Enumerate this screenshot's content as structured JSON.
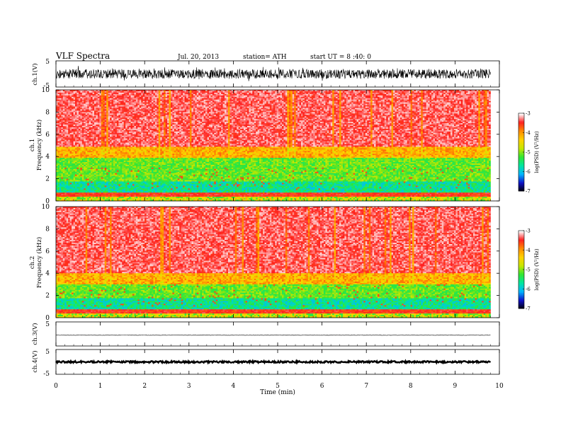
{
  "header": {
    "title": "VLF  Spectra",
    "date": "Jul.  20, 2013",
    "station": "station= ATH",
    "start": "start  UT  =   8 :40: 0"
  },
  "chart_data": {
    "type": "heatmap",
    "x_axis": {
      "label": "Time  (min)",
      "range": [
        0,
        10
      ],
      "ticks": [
        "0",
        "1",
        "2",
        "3",
        "4",
        "5",
        "6",
        "7",
        "8",
        "9",
        "10"
      ],
      "data_end": 9.8
    },
    "panels": [
      {
        "kind": "waveform",
        "ylabel": "ch.1(V)",
        "ylim": [
          -5,
          5
        ],
        "yticks": [
          "5",
          "-5"
        ],
        "amplitude": 1.8,
        "color": "#000000"
      },
      {
        "kind": "spectrogram",
        "ylabel_line1": "ch.1",
        "ylabel_line2": "Frequency  (kHz)",
        "ylim": [
          0,
          10
        ],
        "yticks": [
          "0",
          "2",
          "4",
          "6",
          "8",
          "10"
        ],
        "colorbar": {
          "label": "log(PSD) (V²/Hz)",
          "range": [
            -7,
            -3
          ],
          "ticks": [
            "-3",
            "-4",
            "-5",
            "-6",
            "-7"
          ]
        },
        "noise_floor_khz": 4.3
      },
      {
        "kind": "spectrogram",
        "ylabel_line1": "ch.2",
        "ylabel_line2": "Frequency  (kHz)",
        "ylim": [
          0,
          10
        ],
        "yticks": [
          "0",
          "2",
          "4",
          "6",
          "8",
          "10"
        ],
        "colorbar": {
          "label": "log(PSD) (V²/Hz)",
          "range": [
            -7,
            -3
          ],
          "ticks": [
            "-3",
            "-4",
            "-5",
            "-6",
            "-7"
          ]
        },
        "noise_floor_khz": 3.4
      },
      {
        "kind": "waveform",
        "ylabel": "ch.3(V)",
        "ylim": [
          -5,
          5
        ],
        "yticks": [
          "5"
        ],
        "offset": -0.5,
        "amplitude": 0.08,
        "color": "#000000"
      },
      {
        "kind": "waveform",
        "ylabel": "ch.4(V)",
        "ylim": [
          -5,
          5
        ],
        "yticks": [
          "5",
          "-5"
        ],
        "offset": 0,
        "amplitude": 0.35,
        "color": "#000000"
      }
    ],
    "colormap": [
      "#000000",
      "#1010c8",
      "#00b4ff",
      "#00e6a0",
      "#32e632",
      "#c8e600",
      "#ffd200",
      "#ff8c00",
      "#ff2020",
      "#ffffff"
    ]
  }
}
